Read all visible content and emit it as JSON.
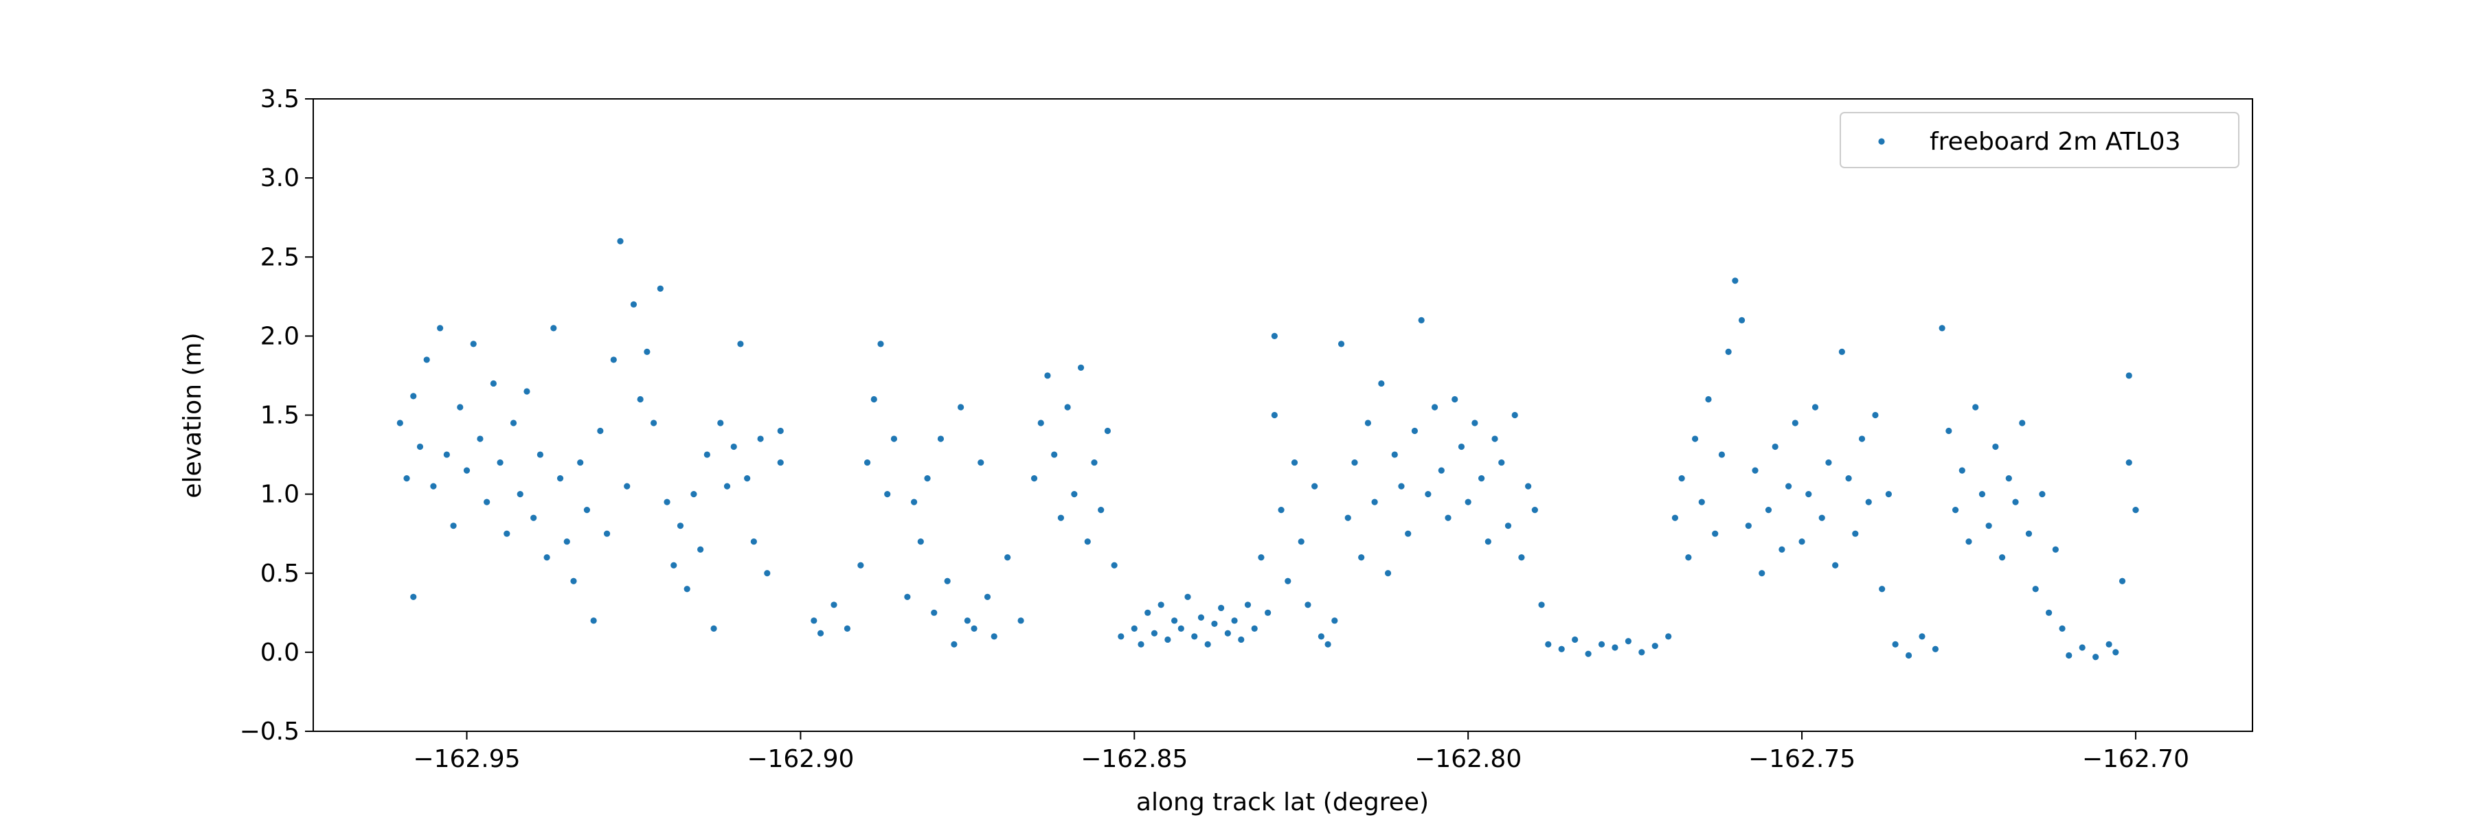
{
  "chart_data": {
    "type": "scatter",
    "xlabel": "along track lat (degree)",
    "ylabel": "elevation (m)",
    "xlim": [
      -162.973,
      -162.6825
    ],
    "ylim": [
      -0.5,
      3.5
    ],
    "xticks": [
      {
        "value": -162.95,
        "label": "−162.95"
      },
      {
        "value": -162.9,
        "label": "−162.90"
      },
      {
        "value": -162.85,
        "label": "−162.85"
      },
      {
        "value": -162.8,
        "label": "−162.80"
      },
      {
        "value": -162.75,
        "label": "−162.75"
      },
      {
        "value": -162.7,
        "label": "−162.70"
      }
    ],
    "yticks": [
      {
        "value": -0.5,
        "label": "−0.5"
      },
      {
        "value": 0,
        "label": "0.0"
      },
      0.5,
      {
        "value": 1,
        "label": "1.0"
      },
      1.5,
      {
        "value": 2,
        "label": "2.0"
      },
      2.5,
      {
        "value": 3,
        "label": "3.0"
      },
      3.5
    ],
    "legend": "upper right",
    "grid": false,
    "series": [
      {
        "name": "freeboard 2m ATL03",
        "color": "#1f77b4",
        "x": [
          -162.96,
          -162.959,
          -162.958,
          -162.958,
          -162.957,
          -162.956,
          -162.955,
          -162.954,
          -162.953,
          -162.952,
          -162.951,
          -162.95,
          -162.949,
          -162.948,
          -162.947,
          -162.946,
          -162.945,
          -162.944,
          -162.943,
          -162.942,
          -162.941,
          -162.94,
          -162.939,
          -162.938,
          -162.937,
          -162.936,
          -162.935,
          -162.934,
          -162.933,
          -162.932,
          -162.931,
          -162.93,
          -162.929,
          -162.928,
          -162.927,
          -162.926,
          -162.925,
          -162.924,
          -162.923,
          -162.922,
          -162.921,
          -162.92,
          -162.919,
          -162.918,
          -162.917,
          -162.916,
          -162.915,
          -162.914,
          -162.913,
          -162.912,
          -162.911,
          -162.91,
          -162.909,
          -162.908,
          -162.907,
          -162.906,
          -162.905,
          -162.903,
          -162.903,
          -162.898,
          -162.897,
          -162.895,
          -162.893,
          -162.891,
          -162.89,
          -162.889,
          -162.888,
          -162.887,
          -162.886,
          -162.884,
          -162.883,
          -162.882,
          -162.881,
          -162.88,
          -162.879,
          -162.878,
          -162.877,
          -162.876,
          -162.875,
          -162.874,
          -162.873,
          -162.872,
          -162.871,
          -162.869,
          -162.867,
          -162.865,
          -162.864,
          -162.863,
          -162.862,
          -162.861,
          -162.86,
          -162.859,
          -162.858,
          -162.857,
          -162.856,
          -162.855,
          -162.854,
          -162.853,
          -162.852,
          -162.85,
          -162.849,
          -162.848,
          -162.847,
          -162.846,
          -162.845,
          -162.844,
          -162.843,
          -162.842,
          -162.841,
          -162.84,
          -162.839,
          -162.838,
          -162.837,
          -162.836,
          -162.835,
          -162.834,
          -162.833,
          -162.832,
          -162.831,
          -162.83,
          -162.829,
          -162.829,
          -162.828,
          -162.827,
          -162.826,
          -162.825,
          -162.824,
          -162.823,
          -162.822,
          -162.821,
          -162.82,
          -162.819,
          -162.818,
          -162.817,
          -162.816,
          -162.815,
          -162.814,
          -162.813,
          -162.812,
          -162.811,
          -162.81,
          -162.809,
          -162.808,
          -162.807,
          -162.806,
          -162.805,
          -162.804,
          -162.803,
          -162.802,
          -162.801,
          -162.8,
          -162.799,
          -162.798,
          -162.797,
          -162.796,
          -162.795,
          -162.794,
          -162.793,
          -162.792,
          -162.791,
          -162.79,
          -162.789,
          -162.788,
          -162.786,
          -162.784,
          -162.782,
          -162.78,
          -162.778,
          -162.776,
          -162.774,
          -162.772,
          -162.77,
          -162.769,
          -162.768,
          -162.767,
          -162.766,
          -162.765,
          -162.764,
          -162.763,
          -162.762,
          -162.761,
          -162.76,
          -162.759,
          -162.758,
          -162.757,
          -162.756,
          -162.755,
          -162.754,
          -162.753,
          -162.752,
          -162.751,
          -162.75,
          -162.749,
          -162.748,
          -162.747,
          -162.746,
          -162.745,
          -162.744,
          -162.743,
          -162.742,
          -162.741,
          -162.74,
          -162.739,
          -162.738,
          -162.737,
          -162.736,
          -162.734,
          -162.732,
          -162.73,
          -162.729,
          -162.728,
          -162.727,
          -162.726,
          -162.725,
          -162.724,
          -162.723,
          -162.722,
          -162.721,
          -162.72,
          -162.719,
          -162.718,
          -162.717,
          -162.716,
          -162.715,
          -162.714,
          -162.713,
          -162.712,
          -162.711,
          -162.71,
          -162.708,
          -162.706,
          -162.704,
          -162.703,
          -162.702,
          -162.701,
          -162.701,
          -162.7
        ],
        "values": [
          1.45,
          1.1,
          1.62,
          0.35,
          1.3,
          1.85,
          1.05,
          2.05,
          1.25,
          0.8,
          1.55,
          1.15,
          1.95,
          1.35,
          0.95,
          1.7,
          1.2,
          0.75,
          1.45,
          1.0,
          1.65,
          0.85,
          1.25,
          0.6,
          2.05,
          1.1,
          0.7,
          0.45,
          1.2,
          0.9,
          0.2,
          1.4,
          0.75,
          1.85,
          2.6,
          1.05,
          2.2,
          1.6,
          1.9,
          1.45,
          2.3,
          0.95,
          0.55,
          0.8,
          0.4,
          1.0,
          0.65,
          1.25,
          0.15,
          1.45,
          1.05,
          1.3,
          1.95,
          1.1,
          0.7,
          1.35,
          0.5,
          1.4,
          1.2,
          0.2,
          0.12,
          0.3,
          0.15,
          0.55,
          1.2,
          1.6,
          1.95,
          1.0,
          1.35,
          0.35,
          0.95,
          0.7,
          1.1,
          0.25,
          1.35,
          0.45,
          0.05,
          1.55,
          0.2,
          0.15,
          1.2,
          0.35,
          0.1,
          0.6,
          0.2,
          1.1,
          1.45,
          1.75,
          1.25,
          0.85,
          1.55,
          1.0,
          1.8,
          0.7,
          1.2,
          0.9,
          1.4,
          0.55,
          0.1,
          0.15,
          0.05,
          0.25,
          0.12,
          0.3,
          0.08,
          0.2,
          0.15,
          0.35,
          0.1,
          0.22,
          0.05,
          0.18,
          0.28,
          0.12,
          0.2,
          0.08,
          0.3,
          0.15,
          0.6,
          0.25,
          2.0,
          1.5,
          0.9,
          0.45,
          1.2,
          0.7,
          0.3,
          1.05,
          0.1,
          0.05,
          0.2,
          1.95,
          0.85,
          1.2,
          0.6,
          1.45,
          0.95,
          1.7,
          0.5,
          1.25,
          1.05,
          0.75,
          1.4,
          2.1,
          1.0,
          1.55,
          1.15,
          0.85,
          1.6,
          1.3,
          0.95,
          1.45,
          1.1,
          0.7,
          1.35,
          1.2,
          0.8,
          1.5,
          0.6,
          1.05,
          0.9,
          0.3,
          0.05,
          0.02,
          0.08,
          -0.01,
          0.05,
          0.03,
          0.07,
          0.0,
          0.04,
          0.1,
          0.85,
          1.1,
          0.6,
          1.35,
          0.95,
          1.6,
          0.75,
          1.25,
          1.9,
          2.35,
          2.1,
          0.8,
          1.15,
          0.5,
          0.9,
          1.3,
          0.65,
          1.05,
          1.45,
          0.7,
          1.0,
          1.55,
          0.85,
          1.2,
          0.55,
          1.9,
          1.1,
          0.75,
          1.35,
          0.95,
          1.5,
          0.4,
          1.0,
          0.05,
          -0.02,
          0.1,
          0.02,
          2.05,
          1.4,
          0.9,
          1.15,
          0.7,
          1.55,
          1.0,
          0.8,
          1.3,
          0.6,
          1.1,
          0.95,
          1.45,
          0.75,
          0.4,
          1.0,
          0.25,
          0.65,
          0.15,
          -0.02,
          0.03,
          -0.03,
          0.05,
          0.0,
          0.45,
          1.2,
          1.75,
          0.9
        ]
      }
    ]
  }
}
